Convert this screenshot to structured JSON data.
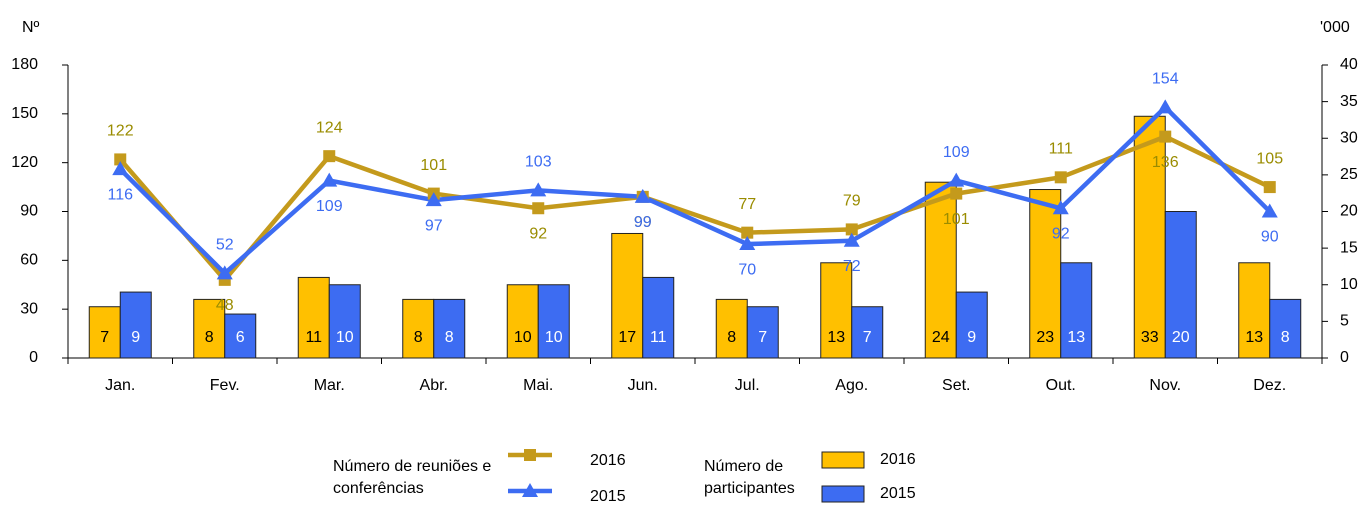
{
  "chart_data": {
    "type": "bar_line",
    "y_label": "Nº",
    "y2_label": "'000",
    "categories": [
      "Jan.",
      "Fev.",
      "Mar.",
      "Abr.",
      "Mai.",
      "Jun.",
      "Jul.",
      "Ago.",
      "Set.",
      "Out.",
      "Nov.",
      "Dez."
    ],
    "ylim": [
      0,
      180
    ],
    "yticks": [
      0,
      30,
      60,
      90,
      120,
      150,
      180
    ],
    "y2lim": [
      0,
      40
    ],
    "y2ticks": [
      0,
      5,
      10,
      15,
      20,
      25,
      30,
      35,
      40
    ],
    "legend_groups": [
      "Número de reuniões e conferências",
      "Número de participantes"
    ],
    "series": [
      {
        "name": "2016",
        "kind": "line",
        "marker": "square",
        "color": "#c49a1c",
        "label_color": "#9a8c00",
        "axis": "y",
        "values": [
          122,
          48,
          124,
          101,
          92,
          99,
          77,
          79,
          101,
          111,
          136,
          105
        ]
      },
      {
        "name": "2015",
        "kind": "line",
        "marker": "triangle",
        "color": "#3d6cf2",
        "label_color": "#3d6cf2",
        "axis": "y",
        "values": [
          116,
          52,
          109,
          97,
          103,
          99,
          70,
          72,
          109,
          92,
          154,
          90
        ]
      },
      {
        "name": "2016",
        "kind": "bar",
        "color": "#ffc000",
        "axis": "y2",
        "values": [
          7,
          8,
          11,
          8,
          10,
          17,
          8,
          13,
          24,
          23,
          33,
          13
        ]
      },
      {
        "name": "2015",
        "kind": "bar",
        "color": "#3d6cf2",
        "axis": "y2",
        "values": [
          9,
          6,
          10,
          8,
          10,
          11,
          7,
          7,
          9,
          13,
          20,
          8
        ]
      }
    ]
  }
}
